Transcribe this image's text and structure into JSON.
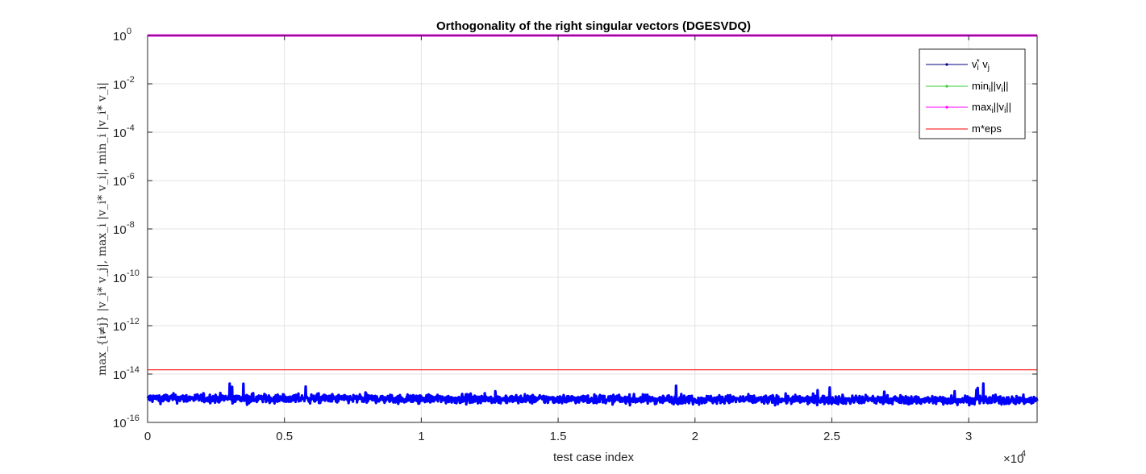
{
  "chart_data": {
    "type": "line",
    "title": "Orthogonality of the right singular vectors (DGESVDQ)",
    "xlabel": "test case index",
    "ylabel": "max_{i≠j} |v_i* v_j|, max_i |v_i* v_i|, min_i |v_i* v_i|",
    "x_multiplier_label": "×10",
    "x_multiplier_exponent": "4",
    "xlim": [
      0,
      32500
    ],
    "ylim": [
      1e-16,
      1
    ],
    "yscale": "log",
    "grid": true,
    "legend_position": "top-right",
    "x_ticks": [
      {
        "value": 0,
        "label": "0"
      },
      {
        "value": 5000,
        "label": "0.5"
      },
      {
        "value": 10000,
        "label": "1"
      },
      {
        "value": 15000,
        "label": "1.5"
      },
      {
        "value": 20000,
        "label": "2"
      },
      {
        "value": 25000,
        "label": "2.5"
      },
      {
        "value": 30000,
        "label": "3"
      }
    ],
    "y_ticks": [
      {
        "value": 1e-16,
        "base": "10",
        "exp": "-16"
      },
      {
        "value": 1e-14,
        "base": "10",
        "exp": "-14"
      },
      {
        "value": 1e-12,
        "base": "10",
        "exp": "-12"
      },
      {
        "value": 1e-10,
        "base": "10",
        "exp": "-10"
      },
      {
        "value": 1e-08,
        "base": "10",
        "exp": "-8"
      },
      {
        "value": 1e-06,
        "base": "10",
        "exp": "-6"
      },
      {
        "value": 0.0001,
        "base": "10",
        "exp": "-4"
      },
      {
        "value": 0.01,
        "base": "10",
        "exp": "-2"
      },
      {
        "value": 1,
        "base": "10",
        "exp": "0"
      }
    ],
    "series": [
      {
        "name": "v_i* v_j",
        "legend": {
          "base": "v",
          "sub1": "i",
          "sup1": "*",
          "mid": " v",
          "sub2": "j"
        },
        "color": "#0000ff",
        "legend_color": "#00007f",
        "kind": "noisy",
        "typical_value": 1e-15,
        "min_value": 3e-16,
        "max_value": 4e-15
      },
      {
        "name": "min_i||v_i||",
        "legend": {
          "base": "min",
          "sub1": "i",
          "mid": "||v",
          "sub2": "i",
          "end": "||"
        },
        "color": "#00ff00",
        "legend_color": "#33cc33",
        "kind": "constant",
        "value": 1
      },
      {
        "name": "max_i||v_i||",
        "legend": {
          "base": "max",
          "sub1": "i",
          "mid": "||v",
          "sub2": "i",
          "end": "||"
        },
        "color": "#ff00ff",
        "legend_color": "#ff00ff",
        "kind": "constant",
        "value": 1
      },
      {
        "name": "m*eps",
        "legend": {
          "base": "m*eps"
        },
        "color": "#ff0000",
        "legend_color": "#ff0000",
        "kind": "constant",
        "value": 1.5e-14
      }
    ]
  }
}
